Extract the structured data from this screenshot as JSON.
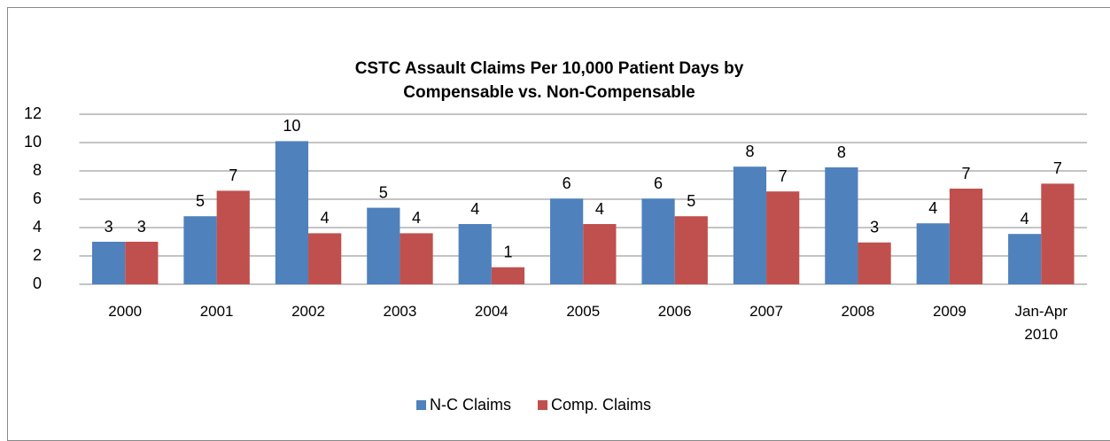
{
  "chart_data": {
    "type": "bar",
    "title": "CSTC Assault Claims Per 10,000 Patient Days by Compensable vs. Non-Compensable",
    "categories": [
      "2000",
      "2001",
      "2002",
      "2003",
      "2004",
      "2005",
      "2006",
      "2007",
      "2008",
      "2009",
      "Jan-Apr 2010"
    ],
    "series": [
      {
        "name": "N-C Claims",
        "color": "#4f81bd",
        "values": [
          3.0,
          4.8,
          10.1,
          5.4,
          4.25,
          6.05,
          6.05,
          8.3,
          8.25,
          4.3,
          3.55
        ],
        "value_labels": [
          "3",
          "5",
          "10",
          "5",
          "4",
          "6",
          "6",
          "8",
          "8",
          "4",
          "4"
        ]
      },
      {
        "name": "Comp. Claims",
        "color": "#c0504d",
        "values": [
          3.0,
          6.6,
          3.6,
          3.6,
          1.2,
          4.25,
          4.8,
          6.55,
          2.95,
          6.75,
          7.1
        ],
        "value_labels": [
          "3",
          "7",
          "4",
          "4",
          "1",
          "4",
          "5",
          "7",
          "3",
          "7",
          "7"
        ]
      }
    ],
    "ylim": [
      0,
      12
    ],
    "yticks": [
      0,
      2,
      4,
      6,
      8,
      10,
      12
    ],
    "grid": true,
    "legend": "bottom"
  }
}
